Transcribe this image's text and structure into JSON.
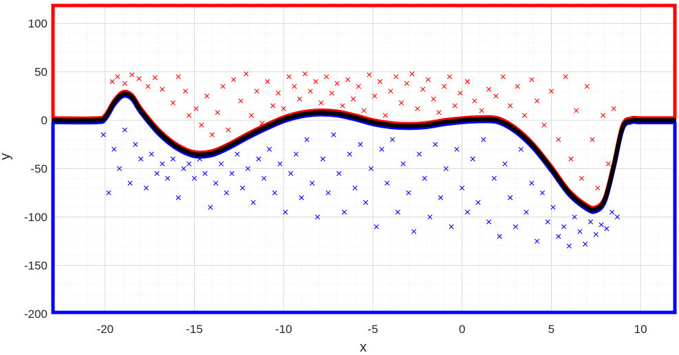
{
  "chart_data": {
    "type": "scatter",
    "title": "",
    "xlabel": "x",
    "ylabel": "y",
    "xlim": [
      -23,
      12
    ],
    "ylim": [
      -200,
      120
    ],
    "xticks": [
      -20,
      -15,
      -10,
      -5,
      0,
      5,
      10
    ],
    "yticks": [
      -200,
      -150,
      -100,
      -50,
      0,
      50,
      100
    ],
    "xtick_labels": [
      "-20",
      "-15",
      "-10",
      "-5",
      "0",
      "5",
      "10"
    ],
    "ytick_labels": [
      "-200",
      "-150",
      "-100",
      "-50",
      "0",
      "50",
      "100"
    ],
    "grid": true,
    "minor_grid": true,
    "legend": "none",
    "boundary_curve": {
      "x": [
        -23,
        -20.5,
        -20,
        -19.5,
        -19,
        -18.5,
        -18,
        -17,
        -16,
        -15,
        -14,
        -13,
        -12,
        -11,
        -10,
        -9,
        -8,
        -7,
        -6,
        -5,
        -4,
        -3,
        -2,
        -1,
        0,
        1,
        2,
        3,
        4,
        5,
        6,
        7,
        7.5,
        8,
        8.5,
        9,
        9.5,
        10,
        12
      ],
      "upper_y": [
        2,
        2,
        5,
        20,
        29,
        26,
        12,
        -10,
        -25,
        -33,
        -32,
        -24,
        -14,
        -5,
        3,
        8,
        10,
        9,
        5,
        0,
        -3,
        -4,
        -3,
        0,
        2,
        3,
        2,
        -8,
        -25,
        -48,
        -73,
        -88,
        -90,
        -80,
        -45,
        -5,
        2,
        2,
        2
      ],
      "lower_y": [
        -2,
        -2,
        1,
        16,
        25,
        22,
        8,
        -14,
        -29,
        -37,
        -36,
        -28,
        -18,
        -9,
        -1,
        4,
        6,
        5,
        1,
        -4,
        -7,
        -8,
        -7,
        -4,
        -2,
        -1,
        -2,
        -12,
        -29,
        -52,
        -77,
        -92,
        -94,
        -84,
        -49,
        -9,
        -2,
        -2,
        -2
      ],
      "upper_color": "#ff0000",
      "lower_color": "#0000ff",
      "center_color": "#000000"
    },
    "region_box": {
      "x_range": [
        -23,
        12
      ],
      "upper_y": 120,
      "lower_y": -200,
      "upper_color": "#ff0000",
      "lower_color": "#0000ff"
    },
    "series": [
      {
        "color": "#ff0000",
        "marker": "x",
        "points": [
          [
            -19.6,
            40
          ],
          [
            -19.3,
            45
          ],
          [
            -18.9,
            38
          ],
          [
            -18.5,
            47
          ],
          [
            -18.1,
            43
          ],
          [
            -17.6,
            35
          ],
          [
            -17.2,
            44
          ],
          [
            -16.8,
            32
          ],
          [
            -16.2,
            18
          ],
          [
            -15.9,
            45
          ],
          [
            -15.5,
            30
          ],
          [
            -15.3,
            5
          ],
          [
            -14.9,
            12
          ],
          [
            -14.6,
            -5
          ],
          [
            -14.3,
            25
          ],
          [
            -14.0,
            -15
          ],
          [
            -13.7,
            8
          ],
          [
            -13.4,
            35
          ],
          [
            -13.1,
            -10
          ],
          [
            -12.8,
            42
          ],
          [
            -12.4,
            20
          ],
          [
            -12.1,
            48
          ],
          [
            -11.8,
            5
          ],
          [
            -11.5,
            30
          ],
          [
            -11.2,
            -3
          ],
          [
            -10.9,
            40
          ],
          [
            -10.6,
            15
          ],
          [
            -10.3,
            28
          ],
          [
            -10.0,
            12
          ],
          [
            -9.7,
            45
          ],
          [
            -9.4,
            35
          ],
          [
            -9.1,
            22
          ],
          [
            -8.8,
            48
          ],
          [
            -8.5,
            30
          ],
          [
            -8.2,
            40
          ],
          [
            -7.9,
            18
          ],
          [
            -7.6,
            45
          ],
          [
            -7.3,
            28
          ],
          [
            -7.0,
            38
          ],
          [
            -6.7,
            15
          ],
          [
            -6.4,
            42
          ],
          [
            -6.1,
            22
          ],
          [
            -5.8,
            35
          ],
          [
            -5.5,
            10
          ],
          [
            -5.2,
            47
          ],
          [
            -4.9,
            25
          ],
          [
            -4.6,
            40
          ],
          [
            -4.3,
            5
          ],
          [
            -4.0,
            30
          ],
          [
            -3.7,
            45
          ],
          [
            -3.4,
            18
          ],
          [
            -3.1,
            38
          ],
          [
            -2.8,
            48
          ],
          [
            -2.5,
            12
          ],
          [
            -2.2,
            32
          ],
          [
            -1.9,
            42
          ],
          [
            -1.6,
            22
          ],
          [
            -1.3,
            8
          ],
          [
            -1.0,
            35
          ],
          [
            -0.7,
            45
          ],
          [
            -0.4,
            15
          ],
          [
            -0.1,
            28
          ],
          [
            0.3,
            40
          ],
          [
            0.7,
            20
          ],
          [
            1.1,
            10
          ],
          [
            1.5,
            32
          ],
          [
            1.9,
            25
          ],
          [
            2.3,
            45
          ],
          [
            2.7,
            15
          ],
          [
            3.1,
            35
          ],
          [
            3.5,
            5
          ],
          [
            3.9,
            42
          ],
          [
            4.2,
            20
          ],
          [
            4.6,
            -5
          ],
          [
            5.0,
            30
          ],
          [
            5.4,
            -20
          ],
          [
            5.8,
            45
          ],
          [
            6.1,
            -40
          ],
          [
            6.4,
            10
          ],
          [
            6.7,
            -60
          ],
          [
            7.0,
            35
          ],
          [
            7.3,
            -20
          ],
          [
            7.6,
            -70
          ],
          [
            7.9,
            5
          ],
          [
            8.2,
            -45
          ],
          [
            8.5,
            12
          ]
        ]
      },
      {
        "color": "#0000ff",
        "marker": "x",
        "points": [
          [
            -20.1,
            -15
          ],
          [
            -19.8,
            -75
          ],
          [
            -19.5,
            -30
          ],
          [
            -19.2,
            -50
          ],
          [
            -18.9,
            -10
          ],
          [
            -18.6,
            -65
          ],
          [
            -18.3,
            -25
          ],
          [
            -18.0,
            -40
          ],
          [
            -17.7,
            -70
          ],
          [
            -17.4,
            -35
          ],
          [
            -17.1,
            -55
          ],
          [
            -16.8,
            -45
          ],
          [
            -16.5,
            -60
          ],
          [
            -16.2,
            -40
          ],
          [
            -15.9,
            -80
          ],
          [
            -15.6,
            -50
          ],
          [
            -15.3,
            -45
          ],
          [
            -15.0,
            -60
          ],
          [
            -14.7,
            -40
          ],
          [
            -14.4,
            -55
          ],
          [
            -14.1,
            -90
          ],
          [
            -13.8,
            -65
          ],
          [
            -13.5,
            -45
          ],
          [
            -13.2,
            -75
          ],
          [
            -12.9,
            -55
          ],
          [
            -12.6,
            -35
          ],
          [
            -12.3,
            -70
          ],
          [
            -12.0,
            -50
          ],
          [
            -11.7,
            -85
          ],
          [
            -11.4,
            -40
          ],
          [
            -11.1,
            -60
          ],
          [
            -10.8,
            -30
          ],
          [
            -10.5,
            -75
          ],
          [
            -10.2,
            -45
          ],
          [
            -9.9,
            -95
          ],
          [
            -9.6,
            -55
          ],
          [
            -9.3,
            -35
          ],
          [
            -9.0,
            -80
          ],
          [
            -8.7,
            -20
          ],
          [
            -8.4,
            -65
          ],
          [
            -8.1,
            -100
          ],
          [
            -7.8,
            -40
          ],
          [
            -7.5,
            -75
          ],
          [
            -7.2,
            -15
          ],
          [
            -6.9,
            -55
          ],
          [
            -6.6,
            -95
          ],
          [
            -6.3,
            -35
          ],
          [
            -6.0,
            -70
          ],
          [
            -5.7,
            -25
          ],
          [
            -5.4,
            -85
          ],
          [
            -5.1,
            -50
          ],
          [
            -4.8,
            -110
          ],
          [
            -4.5,
            -30
          ],
          [
            -4.2,
            -65
          ],
          [
            -3.9,
            -20
          ],
          [
            -3.6,
            -95
          ],
          [
            -3.3,
            -45
          ],
          [
            -3.0,
            -75
          ],
          [
            -2.7,
            -115
          ],
          [
            -2.4,
            -35
          ],
          [
            -2.1,
            -60
          ],
          [
            -1.8,
            -100
          ],
          [
            -1.5,
            -25
          ],
          [
            -1.2,
            -80
          ],
          [
            -0.9,
            -50
          ],
          [
            -0.6,
            -110
          ],
          [
            -0.3,
            -30
          ],
          [
            0.0,
            -70
          ],
          [
            0.3,
            -95
          ],
          [
            0.6,
            -40
          ],
          [
            0.9,
            -85
          ],
          [
            1.2,
            -20
          ],
          [
            1.5,
            -105
          ],
          [
            1.8,
            -60
          ],
          [
            2.1,
            -120
          ],
          [
            2.4,
            -45
          ],
          [
            2.7,
            -80
          ],
          [
            3.0,
            -110
          ],
          [
            3.3,
            -30
          ],
          [
            3.6,
            -95
          ],
          [
            3.9,
            -65
          ],
          [
            4.2,
            -125
          ],
          [
            4.5,
            -75
          ],
          [
            4.8,
            -105
          ],
          [
            5.1,
            -90
          ],
          [
            5.4,
            -120
          ],
          [
            5.7,
            -110
          ],
          [
            6.0,
            -130
          ],
          [
            6.3,
            -100
          ],
          [
            6.6,
            -115
          ],
          [
            6.9,
            -128
          ],
          [
            7.2,
            -105
          ],
          [
            7.5,
            -118
          ],
          [
            7.8,
            -108
          ],
          [
            8.1,
            -112
          ],
          [
            8.4,
            -95
          ],
          [
            8.7,
            -100
          ]
        ]
      }
    ]
  }
}
